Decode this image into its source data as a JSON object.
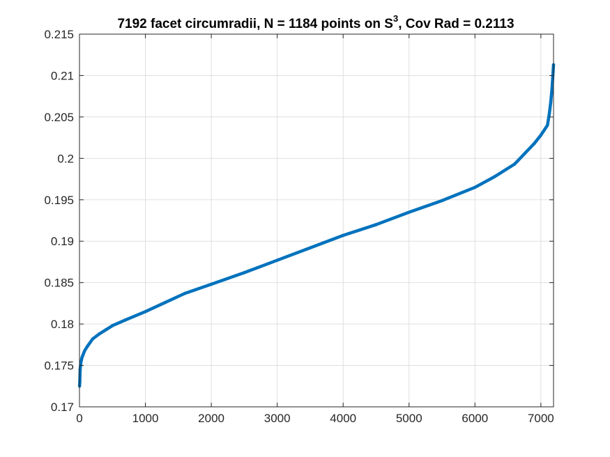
{
  "chart_data": {
    "type": "scatter",
    "title": {
      "before": "7192 facet circumradii, N = 1184 points on S",
      "sup": "3",
      "after": ", Cov Rad = 0.2113"
    },
    "xlabel": "",
    "ylabel": "",
    "xlim": [
      0,
      7192
    ],
    "ylim": [
      0.17,
      0.215
    ],
    "xticks": [
      0,
      1000,
      2000,
      3000,
      4000,
      5000,
      6000,
      7000
    ],
    "xtick_labels": [
      "0",
      "1000",
      "2000",
      "3000",
      "4000",
      "5000",
      "6000",
      "7000"
    ],
    "yticks": [
      0.17,
      0.175,
      0.18,
      0.185,
      0.19,
      0.195,
      0.2,
      0.205,
      0.21,
      0.215
    ],
    "ytick_labels": [
      "0.17",
      "0.175",
      "0.18",
      "0.185",
      "0.19",
      "0.195",
      "0.2",
      "0.205",
      "0.21",
      "0.215"
    ],
    "grid": true,
    "marker_color": "#0072BD",
    "series": [
      {
        "x": [
          1,
          5,
          10,
          20,
          40,
          80,
          120,
          200,
          300,
          400,
          500,
          700,
          1000,
          1300,
          1600,
          2000,
          2500,
          3000,
          3500,
          4000,
          4500,
          5000,
          5500,
          6000,
          6300,
          6600,
          6900,
          7000,
          7100,
          7130,
          7150,
          7170,
          7192
        ],
        "y": [
          0.1725,
          0.173,
          0.1745,
          0.1753,
          0.176,
          0.1768,
          0.1773,
          0.1782,
          0.1788,
          0.1793,
          0.1798,
          0.1805,
          0.1815,
          0.1826,
          0.1837,
          0.1848,
          0.1862,
          0.1877,
          0.1892,
          0.1907,
          0.192,
          0.1935,
          0.1949,
          0.1965,
          0.1978,
          0.1993,
          0.2018,
          0.2028,
          0.204,
          0.2055,
          0.2068,
          0.2085,
          0.2113
        ]
      }
    ]
  }
}
